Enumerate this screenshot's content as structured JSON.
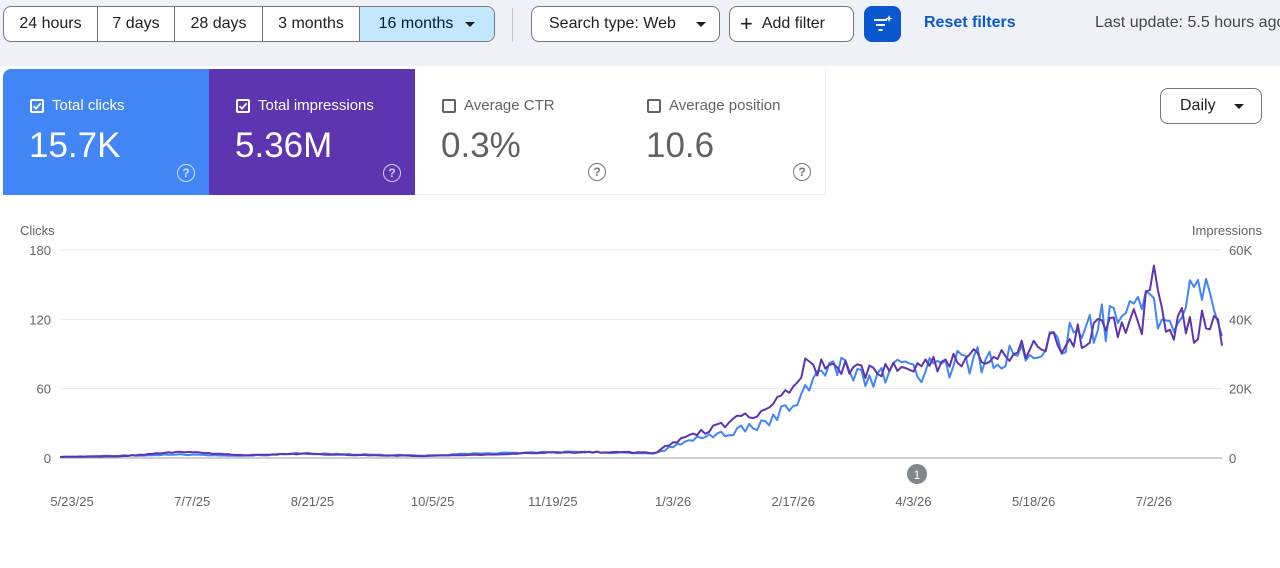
{
  "date_range": {
    "options": [
      "24 hours",
      "7 days",
      "28 days",
      "3 months",
      "16 months"
    ],
    "selected": "16 months"
  },
  "toolbar": {
    "search_type_label": "Search type: Web",
    "add_filter_label": "Add filter",
    "filter_icon": "filter-sparkle-icon",
    "reset_filters_label": "Reset filters",
    "last_update": "Last update: 5.5 hours ago"
  },
  "metrics": [
    {
      "label": "Total clicks",
      "value": "15.7K",
      "checked": true,
      "color": "#4285f4"
    },
    {
      "label": "Total impressions",
      "value": "5.36M",
      "checked": true,
      "color": "#5e35b1"
    },
    {
      "label": "Average CTR",
      "value": "0.3%",
      "checked": false
    },
    {
      "label": "Average position",
      "value": "10.6",
      "checked": false
    }
  ],
  "granularity": "Daily",
  "annotation_marker": "1",
  "chart_data": {
    "type": "line",
    "left_axis": {
      "label": "Clicks",
      "ticks": [
        "180",
        "120",
        "60",
        "0"
      ],
      "range": [
        0,
        180
      ]
    },
    "right_axis": {
      "label": "Impressions",
      "ticks": [
        "60K",
        "40K",
        "20K",
        "0"
      ],
      "range": [
        0,
        60000
      ]
    },
    "x_ticks": [
      "5/23/25",
      "7/7/25",
      "8/21/25",
      "10/5/25",
      "11/19/25",
      "1/3/26",
      "2/17/26",
      "4/3/26",
      "5/18/26",
      "7/2/26"
    ],
    "x_range": [
      "2025-05-23",
      "2026-08-01"
    ],
    "grid": true,
    "series": [
      {
        "name": "Total clicks",
        "axis": "left",
        "color": "#4285f4",
        "dates": [
          "2025-05-23",
          "2025-06-15",
          "2025-07-07",
          "2025-08-01",
          "2025-08-21",
          "2025-09-15",
          "2025-10-05",
          "2025-10-30",
          "2025-11-19",
          "2025-12-10",
          "2026-01-01",
          "2026-01-05",
          "2026-01-12",
          "2026-01-20",
          "2026-01-28",
          "2026-02-05",
          "2026-02-12",
          "2026-02-17",
          "2026-02-22",
          "2026-02-26",
          "2026-03-02",
          "2026-03-08",
          "2026-03-15",
          "2026-03-22",
          "2026-03-29",
          "2026-04-03",
          "2026-04-10",
          "2026-04-18",
          "2026-04-25",
          "2026-05-02",
          "2026-05-10",
          "2026-05-18",
          "2026-05-25",
          "2026-06-01",
          "2026-06-08",
          "2026-06-12",
          "2026-06-18",
          "2026-06-25",
          "2026-07-02",
          "2026-07-06",
          "2026-07-10",
          "2026-07-14",
          "2026-07-18",
          "2026-07-22",
          "2026-07-26",
          "2026-07-30",
          "2026-08-01"
        ],
        "values": [
          1,
          2,
          3,
          2,
          4,
          3,
          2,
          4,
          5,
          5,
          4,
          8,
          14,
          18,
          22,
          26,
          30,
          40,
          50,
          62,
          70,
          80,
          76,
          72,
          74,
          80,
          76,
          78,
          82,
          84,
          86,
          88,
          96,
          100,
          108,
          112,
          118,
          130,
          125,
          140,
          118,
          120,
          135,
          140,
          150,
          145,
          98
        ]
      },
      {
        "name": "Total impressions",
        "axis": "right",
        "color": "#5e35b1",
        "dates": [
          "2025-05-23",
          "2025-06-15",
          "2025-07-07",
          "2025-08-01",
          "2025-08-21",
          "2025-09-15",
          "2025-10-05",
          "2025-10-30",
          "2025-11-19",
          "2025-12-10",
          "2026-01-01",
          "2026-01-05",
          "2026-01-12",
          "2026-01-20",
          "2026-01-28",
          "2026-02-05",
          "2026-02-12",
          "2026-02-17",
          "2026-02-22",
          "2026-02-26",
          "2026-03-02",
          "2026-03-08",
          "2026-03-15",
          "2026-03-22",
          "2026-03-29",
          "2026-04-03",
          "2026-04-10",
          "2026-04-18",
          "2026-04-25",
          "2026-05-02",
          "2026-05-10",
          "2026-05-18",
          "2026-05-25",
          "2026-06-01",
          "2026-06-08",
          "2026-06-12",
          "2026-06-18",
          "2026-06-25",
          "2026-07-02",
          "2026-07-06",
          "2026-07-10",
          "2026-07-14",
          "2026-07-18",
          "2026-07-22",
          "2026-07-26",
          "2026-07-30",
          "2026-08-01"
        ],
        "values": [
          300,
          500,
          1800,
          800,
          1200,
          800,
          600,
          1000,
          1500,
          1700,
          1500,
          3500,
          6000,
          8000,
          10000,
          12500,
          13500,
          17000,
          21000,
          26000,
          26500,
          27000,
          26000,
          25500,
          26000,
          27500,
          27000,
          27500,
          28500,
          29500,
          30000,
          31000,
          32000,
          33000,
          35000,
          36000,
          37000,
          38000,
          40000,
          57500,
          40000,
          38000,
          40000,
          36000,
          42000,
          41000,
          32000
        ]
      }
    ]
  }
}
